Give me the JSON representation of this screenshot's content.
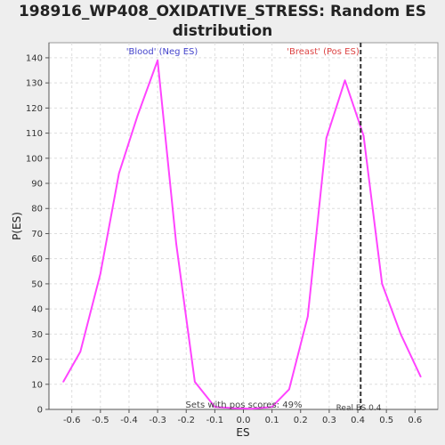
{
  "chart_data": {
    "type": "line",
    "title_line1": "198916_WP408_OXIDATIVE_STRESS: Random ES",
    "title_line2": "distribution",
    "xlabel": "ES",
    "ylabel": "P(ES)",
    "xlim": [
      -0.68,
      0.68
    ],
    "ylim": [
      0,
      146
    ],
    "x_ticks": [
      -0.6,
      -0.5,
      -0.4,
      -0.3,
      -0.2,
      -0.1,
      0.0,
      0.1,
      0.2,
      0.3,
      0.4,
      0.5,
      0.6
    ],
    "x_tick_labels": [
      "-0.6",
      "-0.5",
      "-0.4",
      "-0.3",
      "-0.2",
      "-0.1",
      "0.0",
      "0.1",
      "0.2",
      "0.3",
      "0.4",
      "0.5",
      "0.6"
    ],
    "y_ticks": [
      0,
      10,
      20,
      30,
      40,
      50,
      60,
      70,
      80,
      90,
      100,
      110,
      120,
      130,
      140
    ],
    "y_tick_labels": [
      "0",
      "10",
      "20",
      "30",
      "40",
      "50",
      "60",
      "70",
      "80",
      "90",
      "100",
      "110",
      "120",
      "130",
      "140"
    ],
    "grid": true,
    "series": [
      {
        "color": "#ff44ff",
        "x": [
          -0.63,
          -0.57,
          -0.5,
          -0.435,
          -0.37,
          -0.3,
          -0.235,
          -0.17,
          -0.1,
          -0.035,
          0.03,
          0.1,
          0.16,
          0.225,
          0.29,
          0.355,
          0.42,
          0.485,
          0.55,
          0.62
        ],
        "y": [
          11,
          23,
          54,
          94,
          117,
          139,
          66,
          11,
          1,
          0.5,
          0.3,
          1,
          8,
          37,
          108,
          131,
          109,
          50,
          30,
          13
        ]
      }
    ],
    "real_es_x": 0.41,
    "real_es_label": "Real ES 0.4",
    "neg_label": "'Blood' (Neg ES)",
    "neg_color": "#4444cc",
    "pos_label": "'Breast' (Pos ES)",
    "pos_color": "#dd4444",
    "sets_label": "Sets with pos scores: 49%"
  }
}
